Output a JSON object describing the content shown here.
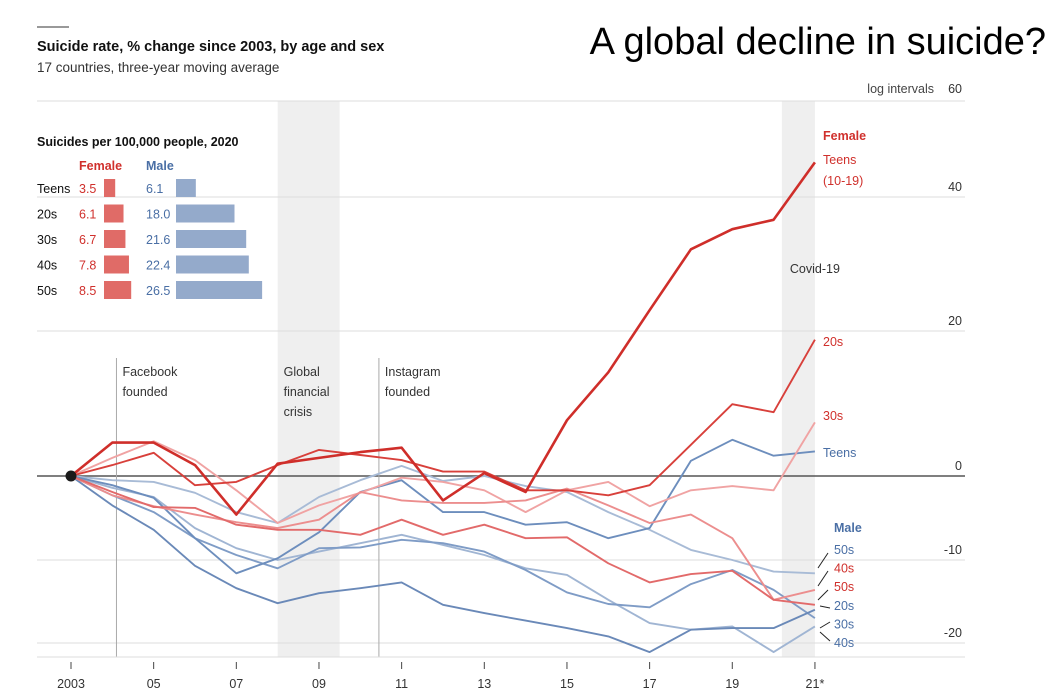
{
  "headline": "A global decline in suicide?",
  "chart_data": {
    "type": "line",
    "title": "Suicide rate, % change since 2003, by age and sex",
    "subtitle": "17 countries, three-year moving average",
    "y_scale": "log",
    "y_scale_note": "log intervals",
    "ytick_values": [
      60,
      40,
      20,
      0,
      -10,
      -20
    ],
    "ytick_labels": [
      "60",
      "40",
      "20",
      "0",
      "-10",
      "-20"
    ],
    "x": [
      2003,
      2004,
      2005,
      2006,
      2007,
      2008,
      2009,
      2010,
      2011,
      2012,
      2013,
      2014,
      2015,
      2016,
      2017,
      2018,
      2019,
      2020,
      2021
    ],
    "xtick_values": [
      2003,
      2005,
      2007,
      2009,
      2011,
      2013,
      2015,
      2017,
      2019,
      2021
    ],
    "xtick_labels": [
      "2003",
      "05",
      "07",
      "09",
      "11",
      "13",
      "15",
      "17",
      "19",
      "21*"
    ],
    "grid": true,
    "series": [
      {
        "name": "Female Teens (10-19)",
        "sex": "female",
        "color": "#cf2e2a",
        "width": 2.6,
        "values": [
          0,
          4.6,
          4.6,
          1.5,
          -4.6,
          1.7,
          2.5,
          3.3,
          3.9,
          -2.9,
          0.4,
          -1.9,
          7.7,
          14.3,
          23.1,
          32.2,
          35.2,
          36.6,
          47.2
        ]
      },
      {
        "name": "Female 20s",
        "sex": "female",
        "color": "#d8403b",
        "width": 1.9,
        "values": [
          0,
          1.5,
          3.2,
          -1.1,
          -0.7,
          1.5,
          3.6,
          2.9,
          2.2,
          0.6,
          0.6,
          -1.7,
          -1.7,
          -2.3,
          -1.1,
          4.3,
          9.9,
          8.8,
          18.8
        ]
      },
      {
        "name": "Female 30s",
        "sex": "female",
        "color": "#f0a3a3",
        "width": 1.9,
        "values": [
          0,
          2.5,
          4.8,
          2.2,
          -1.7,
          -5.6,
          -3.5,
          -2.0,
          -0.2,
          -0.7,
          -1.7,
          -4.3,
          -1.7,
          -0.7,
          -3.6,
          -1.7,
          -1.2,
          -1.7,
          7.4
        ]
      },
      {
        "name": "Female 40s",
        "sex": "female",
        "color": "#e26a6a",
        "width": 1.9,
        "values": [
          0,
          -1.9,
          -3.7,
          -3.8,
          -5.8,
          -6.4,
          -6.4,
          -7.0,
          -5.2,
          -7.0,
          -5.8,
          -7.4,
          -7.3,
          -10.4,
          -12.7,
          -11.7,
          -11.3,
          -14.8,
          -15.4
        ]
      },
      {
        "name": "Female 50s",
        "sex": "female",
        "color": "#ec8e8e",
        "width": 1.9,
        "values": [
          0,
          -2.3,
          -3.6,
          -4.6,
          -5.5,
          -6.2,
          -5.2,
          -1.9,
          -2.9,
          -3.2,
          -3.2,
          -2.9,
          -1.5,
          -3.5,
          -5.6,
          -4.6,
          -7.4,
          -14.8,
          -13.6
        ]
      },
      {
        "name": "Male Teens",
        "sex": "male",
        "color": "#6d8ebd",
        "width": 1.9,
        "values": [
          0,
          -1.1,
          -2.6,
          -7.4,
          -11.6,
          -9.8,
          -6.7,
          -1.9,
          -0.5,
          -4.3,
          -4.3,
          -5.8,
          -5.5,
          -7.4,
          -6.2,
          2.1,
          5.0,
          2.8,
          3.4
        ]
      },
      {
        "name": "Male 50s",
        "sex": "male",
        "color": "#a8bbd6",
        "width": 1.9,
        "values": [
          0,
          -0.5,
          -0.7,
          -2.0,
          -4.3,
          -5.6,
          -2.5,
          -0.5,
          1.4,
          -0.6,
          0,
          -1.2,
          -1.9,
          -4.3,
          -6.4,
          -8.8,
          -10.0,
          -11.4,
          -11.6
        ]
      },
      {
        "name": "Male 20s",
        "sex": "male",
        "color": "#7f9cc6",
        "width": 1.9,
        "values": [
          0,
          -2.3,
          -4.3,
          -7.4,
          -9.4,
          -11.0,
          -8.6,
          -8.5,
          -7.6,
          -8.0,
          -9.0,
          -11.2,
          -13.9,
          -15.3,
          -15.7,
          -12.9,
          -11.2,
          -13.6,
          -17.0
        ]
      },
      {
        "name": "Male 30s",
        "sex": "male",
        "color": "#a0b5d3",
        "width": 1.9,
        "values": [
          0,
          -1.4,
          -2.5,
          -6.2,
          -8.6,
          -10.0,
          -9.0,
          -8.0,
          -7.0,
          -8.2,
          -9.4,
          -11.0,
          -11.8,
          -14.8,
          -17.6,
          -18.4,
          -18.0,
          -21.1,
          -18.0
        ]
      },
      {
        "name": "Male 40s",
        "sex": "male",
        "color": "#6a89b8",
        "width": 1.9,
        "values": [
          0,
          -3.5,
          -6.4,
          -10.7,
          -13.4,
          -15.2,
          -14.0,
          -13.4,
          -12.7,
          -15.4,
          -16.4,
          -17.3,
          -18.2,
          -19.2,
          -21.1,
          -18.4,
          -18.2,
          -18.2,
          -16.0
        ]
      }
    ],
    "shaded_periods": [
      {
        "label_lines": [
          "Global",
          "financial",
          "crisis"
        ],
        "start": 2008,
        "end": 2009.5
      },
      {
        "label_lines": [
          "Covid-19"
        ],
        "start": 2020.2,
        "end": 2021
      }
    ],
    "events": [
      {
        "label_lines": [
          "Facebook",
          "founded"
        ],
        "year": 2004.1
      },
      {
        "label_lines": [
          "Instagram",
          "founded"
        ],
        "year": 2010.45
      }
    ],
    "end_labels": {
      "female_header": "Female",
      "male_header": "Male",
      "female": [
        {
          "text": "Teens"
        },
        {
          "text": "(10-19)"
        },
        {
          "text": "20s"
        },
        {
          "text": "30s"
        }
      ],
      "male_teens": "Teens",
      "stack": [
        {
          "text": "50s",
          "sex": "male"
        },
        {
          "text": "40s",
          "sex": "female"
        },
        {
          "text": "50s",
          "sex": "female"
        },
        {
          "text": "20s",
          "sex": "male"
        },
        {
          "text": "30s",
          "sex": "male"
        },
        {
          "text": "40s",
          "sex": "male"
        }
      ]
    },
    "inset": {
      "type": "bar",
      "title": "Suicides per 100,000 people, 2020",
      "female_label": "Female",
      "male_label": "Male",
      "categories": [
        "Teens",
        "20s",
        "30s",
        "40s",
        "50s"
      ],
      "female": [
        3.5,
        6.1,
        6.7,
        7.8,
        8.5
      ],
      "male": [
        6.1,
        18.0,
        21.6,
        22.4,
        26.5
      ],
      "female_labels": [
        "3.5",
        "6.1",
        "6.7",
        "7.8",
        "8.5"
      ],
      "male_labels": [
        "6.1",
        "18.0",
        "21.6",
        "22.4",
        "26.5"
      ]
    },
    "colors": {
      "female": "#d0302c",
      "female_bar": "#e06b67",
      "male": "#4a6fa5",
      "male_bar": "#94aacb",
      "zero_line": "#555555",
      "grid": "#dddddd",
      "shade": "#efefef"
    }
  }
}
